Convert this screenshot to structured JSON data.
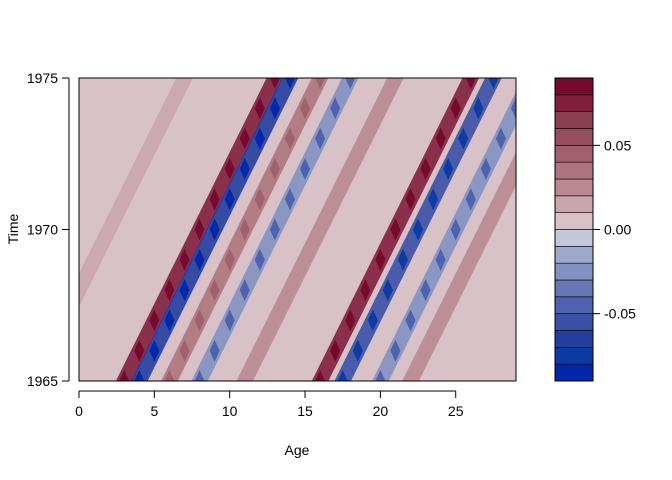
{
  "chart_data": {
    "type": "heatmap",
    "title": "",
    "xlabel": "Age",
    "ylabel": "Time",
    "xlim": [
      0,
      29
    ],
    "ylim": [
      1965,
      1975
    ],
    "x_ticks": [
      "0",
      "5",
      "10",
      "15",
      "20",
      "25"
    ],
    "x_tick_values": [
      0,
      5,
      10,
      15,
      20,
      25
    ],
    "y_ticks": [
      "1965",
      "1970",
      "1975"
    ],
    "y_tick_values": [
      1965,
      1970,
      1975
    ],
    "color_scale": {
      "levels": [
        -0.09,
        -0.08,
        -0.07,
        -0.06,
        -0.05,
        -0.04,
        -0.03,
        -0.02,
        -0.01,
        0.0,
        0.01,
        0.02,
        0.03,
        0.04,
        0.05,
        0.06,
        0.07,
        0.08,
        0.09
      ],
      "colors": [
        "#0028a8",
        "#0d3aa3",
        "#243ea0",
        "#3a50a6",
        "#4e62ad",
        "#6676b6",
        "#8391c1",
        "#9ea9cc",
        "#c2c8d8",
        "#d8c2c8",
        "#c9a6ad",
        "#b98892",
        "#ae7580",
        "#a0606d",
        "#944e5d",
        "#8a3e51",
        "#821f3e",
        "#750a2e"
      ],
      "ticks": [
        "-0.05",
        "0.00",
        "0.05"
      ],
      "tick_values": [
        -0.05,
        0.0,
        0.05
      ]
    },
    "cohort_ridges": [
      {
        "age_at_1965": 3,
        "value": 0.075
      },
      {
        "age_at_1965": 4,
        "value": -0.07
      },
      {
        "age_at_1965": 6,
        "value": 0.03
      },
      {
        "age_at_1965": 8,
        "value": -0.03
      },
      {
        "age_at_1965": 16,
        "value": 0.07
      },
      {
        "age_at_1965": 17.5,
        "value": -0.06
      },
      {
        "age_at_1965": 20,
        "value": -0.03
      },
      {
        "age_at_1965": 22,
        "value": 0.025
      },
      {
        "age_at_1965": 11,
        "value": 0.02
      },
      {
        "age_at_1965": -3,
        "value": 0.015
      }
    ]
  }
}
